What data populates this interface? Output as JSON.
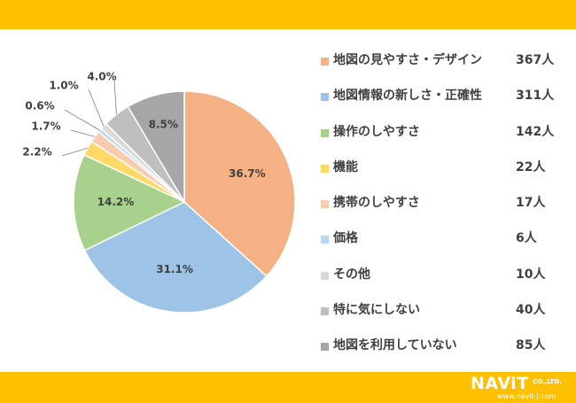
{
  "chart_data": {
    "type": "pie",
    "slices": [
      {
        "label": "地図の見やすさ・デザイン",
        "count": "367人",
        "percent": 36.7,
        "percent_label": "36.7%",
        "color": "#f4b183"
      },
      {
        "label": "地図情報の新しさ・正確性",
        "count": "311人",
        "percent": 31.1,
        "percent_label": "31.1%",
        "color": "#9dc3e6"
      },
      {
        "label": "操作のしやすさ",
        "count": "142人",
        "percent": 14.2,
        "percent_label": "14.2%",
        "color": "#a9d18e"
      },
      {
        "label": "機能",
        "count": "22人",
        "percent": 2.2,
        "percent_label": "2.2%",
        "color": "#ffd966"
      },
      {
        "label": "携帯のしやすさ",
        "count": "17人",
        "percent": 1.7,
        "percent_label": "1.7%",
        "color": "#f8cbad"
      },
      {
        "label": "価格",
        "count": "6人",
        "percent": 0.6,
        "percent_label": "0.6%",
        "color": "#bdd7ee"
      },
      {
        "label": "その他",
        "count": "10人",
        "percent": 1.0,
        "percent_label": "1.0%",
        "color": "#d9d9d9"
      },
      {
        "label": "特に気にしない",
        "count": "40人",
        "percent": 4.0,
        "percent_label": "4.0%",
        "color": "#bfbfbf"
      },
      {
        "label": "地図を利用していない",
        "count": "85人",
        "percent": 8.5,
        "percent_label": "8.5%",
        "color": "#a6a6a6"
      }
    ],
    "legend_placement": "right"
  },
  "logo": {
    "brand": "NAViT",
    "suffix": "CO.,LTD.",
    "url": "www.navit-j.com"
  }
}
